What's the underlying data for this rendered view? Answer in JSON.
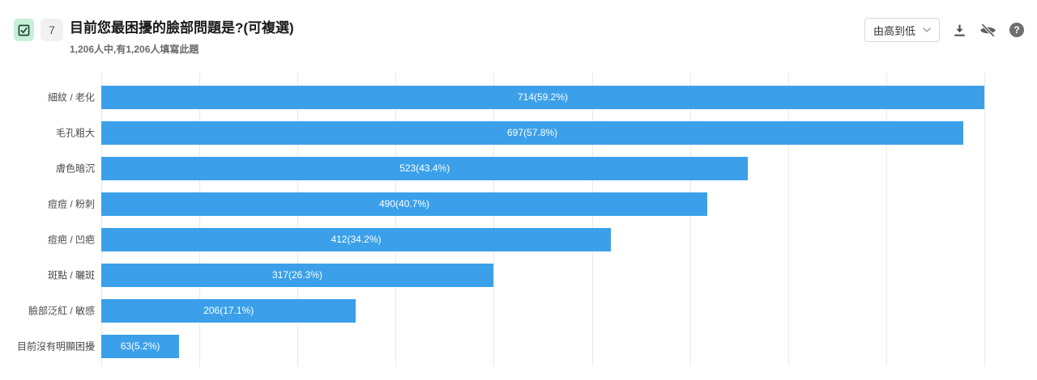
{
  "header": {
    "question_number": "7",
    "question_type_icon": "checkbox-checked-icon",
    "title": "目前您最困擾的臉部問題是?(可複選)",
    "subtitle": "1,206人中,有1,206人填寫此題",
    "sort_dropdown": {
      "value": "由高到低",
      "chevron_icon": "chevron-down-icon"
    },
    "toolbar_icons": [
      "download-icon",
      "eye-off-icon",
      "question-mark-icon"
    ],
    "help_glyph": "?"
  },
  "chart_data": {
    "type": "bar",
    "orientation": "horizontal",
    "title": "目前您最困擾的臉部問題是?(可複選)",
    "total_respondents": 1206,
    "answered": 1206,
    "categories": [
      "細紋 / 老化",
      "毛孔粗大",
      "膚色暗沉",
      "痘痘 / 粉刺",
      "痘疤 / 凹疤",
      "斑點 / 曬斑",
      "臉部泛紅 / 敏感",
      "目前沒有明顯困擾"
    ],
    "values": [
      714,
      697,
      523,
      490,
      412,
      317,
      206,
      63
    ],
    "percentages": [
      59.2,
      57.8,
      43.4,
      40.7,
      34.2,
      26.3,
      17.1,
      5.2
    ],
    "value_labels": [
      "714(59.2%)",
      "697(57.8%)",
      "523(43.4%)",
      "490(40.7%)",
      "412(34.2%)",
      "317(26.3%)",
      "206(17.1%)",
      "63(5.2%)"
    ],
    "xlim": [
      0,
      714
    ],
    "gridline_divisions": 9,
    "grid": true,
    "legend": false,
    "bar_color": "#3ba0e9",
    "value_text_color": "#ffffff",
    "gridline_color": "#e9e9e9"
  }
}
